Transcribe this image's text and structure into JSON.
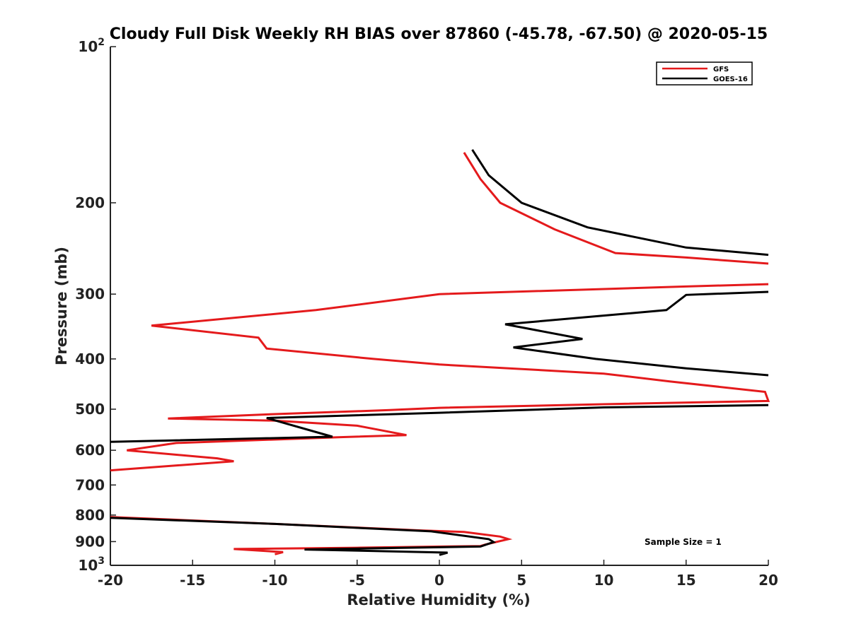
{
  "chart_data": {
    "type": "line",
    "title": "Cloudy Full Disk Weekly RH BIAS over 87860 (-45.78, -67.50) @ 2020-05-15",
    "xlabel": "Relative Humidity (%)",
    "ylabel": "Pressure (mb)",
    "xlim": [
      -20,
      20
    ],
    "ylim": [
      100,
      1000
    ],
    "yscale": "log",
    "y_reversed": true,
    "x_ticks": [
      -20,
      -15,
      -10,
      -5,
      0,
      5,
      10,
      15,
      20
    ],
    "x_tick_labels": [
      "-20",
      "-15",
      "-10",
      "-5",
      "0",
      "5",
      "10",
      "15",
      "20"
    ],
    "y_ticks": [
      100,
      200,
      300,
      400,
      500,
      600,
      700,
      800,
      900,
      1000
    ],
    "y_tick_labels": [
      {
        "base": "10",
        "exp": "2"
      },
      {
        "base": "200",
        "exp": ""
      },
      {
        "base": "300",
        "exp": ""
      },
      {
        "base": "400",
        "exp": ""
      },
      {
        "base": "500",
        "exp": ""
      },
      {
        "base": "600",
        "exp": ""
      },
      {
        "base": "700",
        "exp": ""
      },
      {
        "base": "800",
        "exp": ""
      },
      {
        "base": "900",
        "exp": ""
      },
      {
        "base": "10",
        "exp": "3"
      }
    ],
    "grid": false,
    "legend_position": "top-right",
    "annotation": "Sample Size = 1",
    "series": [
      {
        "name": "GFS",
        "color": "#e41a1c",
        "points": [
          [
            1.5,
            160
          ],
          [
            2.5,
            180
          ],
          [
            3.7,
            200
          ],
          [
            7,
            225
          ],
          [
            10.7,
            250
          ],
          [
            15,
            255
          ],
          [
            20,
            262
          ],
          [
            null,
            null
          ],
          [
            20,
            287
          ],
          [
            15,
            290
          ],
          [
            0,
            300
          ],
          [
            -7.5,
            322
          ],
          [
            -17.5,
            345
          ],
          [
            -11,
            364
          ],
          [
            -10.5,
            382
          ],
          [
            -4,
            400
          ],
          [
            0,
            410
          ],
          [
            10,
            427
          ],
          [
            14,
            442
          ],
          [
            19.8,
            463
          ],
          [
            20,
            482
          ],
          [
            10,
            489
          ],
          [
            0,
            497
          ],
          [
            -3,
            502
          ],
          [
            -10,
            511
          ],
          [
            -16.5,
            521
          ],
          [
            -10,
            526
          ],
          [
            -5,
            538
          ],
          [
            -2,
            561
          ],
          [
            -6,
            566
          ],
          [
            -16,
            581
          ],
          [
            -19,
            600
          ],
          [
            -13.5,
            622
          ],
          [
            -12.5,
            630
          ],
          [
            -20,
            656
          ],
          [
            null,
            null
          ],
          [
            -20,
            807
          ],
          [
            -10,
            832
          ],
          [
            -1,
            857
          ],
          [
            1.5,
            862
          ],
          [
            3.7,
            880
          ],
          [
            4.2,
            890
          ],
          [
            2.8,
            912
          ],
          [
            2.5,
            918
          ],
          [
            -5,
            925
          ],
          [
            -12.5,
            930
          ],
          [
            -9.5,
            943
          ],
          [
            -10,
            952
          ]
        ]
      },
      {
        "name": "GOES-16",
        "color": "#000000",
        "points": [
          [
            2,
            158
          ],
          [
            3,
            177
          ],
          [
            5,
            200
          ],
          [
            9,
            223
          ],
          [
            15,
            244
          ],
          [
            20,
            252
          ],
          [
            null,
            null
          ],
          [
            20,
            297
          ],
          [
            15,
            301
          ],
          [
            13.8,
            322
          ],
          [
            4,
            343
          ],
          [
            8.7,
            366
          ],
          [
            4.5,
            380
          ],
          [
            9.5,
            400
          ],
          [
            15,
            417
          ],
          [
            20,
            430
          ],
          [
            null,
            null
          ],
          [
            20,
            491
          ],
          [
            10,
            496
          ],
          [
            0,
            508
          ],
          [
            -10.5,
            520
          ],
          [
            -6.5,
            565
          ],
          [
            -20,
            578
          ],
          [
            null,
            null
          ],
          [
            -20,
            810
          ],
          [
            -10,
            832
          ],
          [
            -0.5,
            860
          ],
          [
            3,
            890
          ],
          [
            3.3,
            902
          ],
          [
            2.5,
            920
          ],
          [
            -8.2,
            932
          ],
          [
            0.5,
            945
          ],
          [
            0,
            955
          ]
        ]
      }
    ]
  }
}
